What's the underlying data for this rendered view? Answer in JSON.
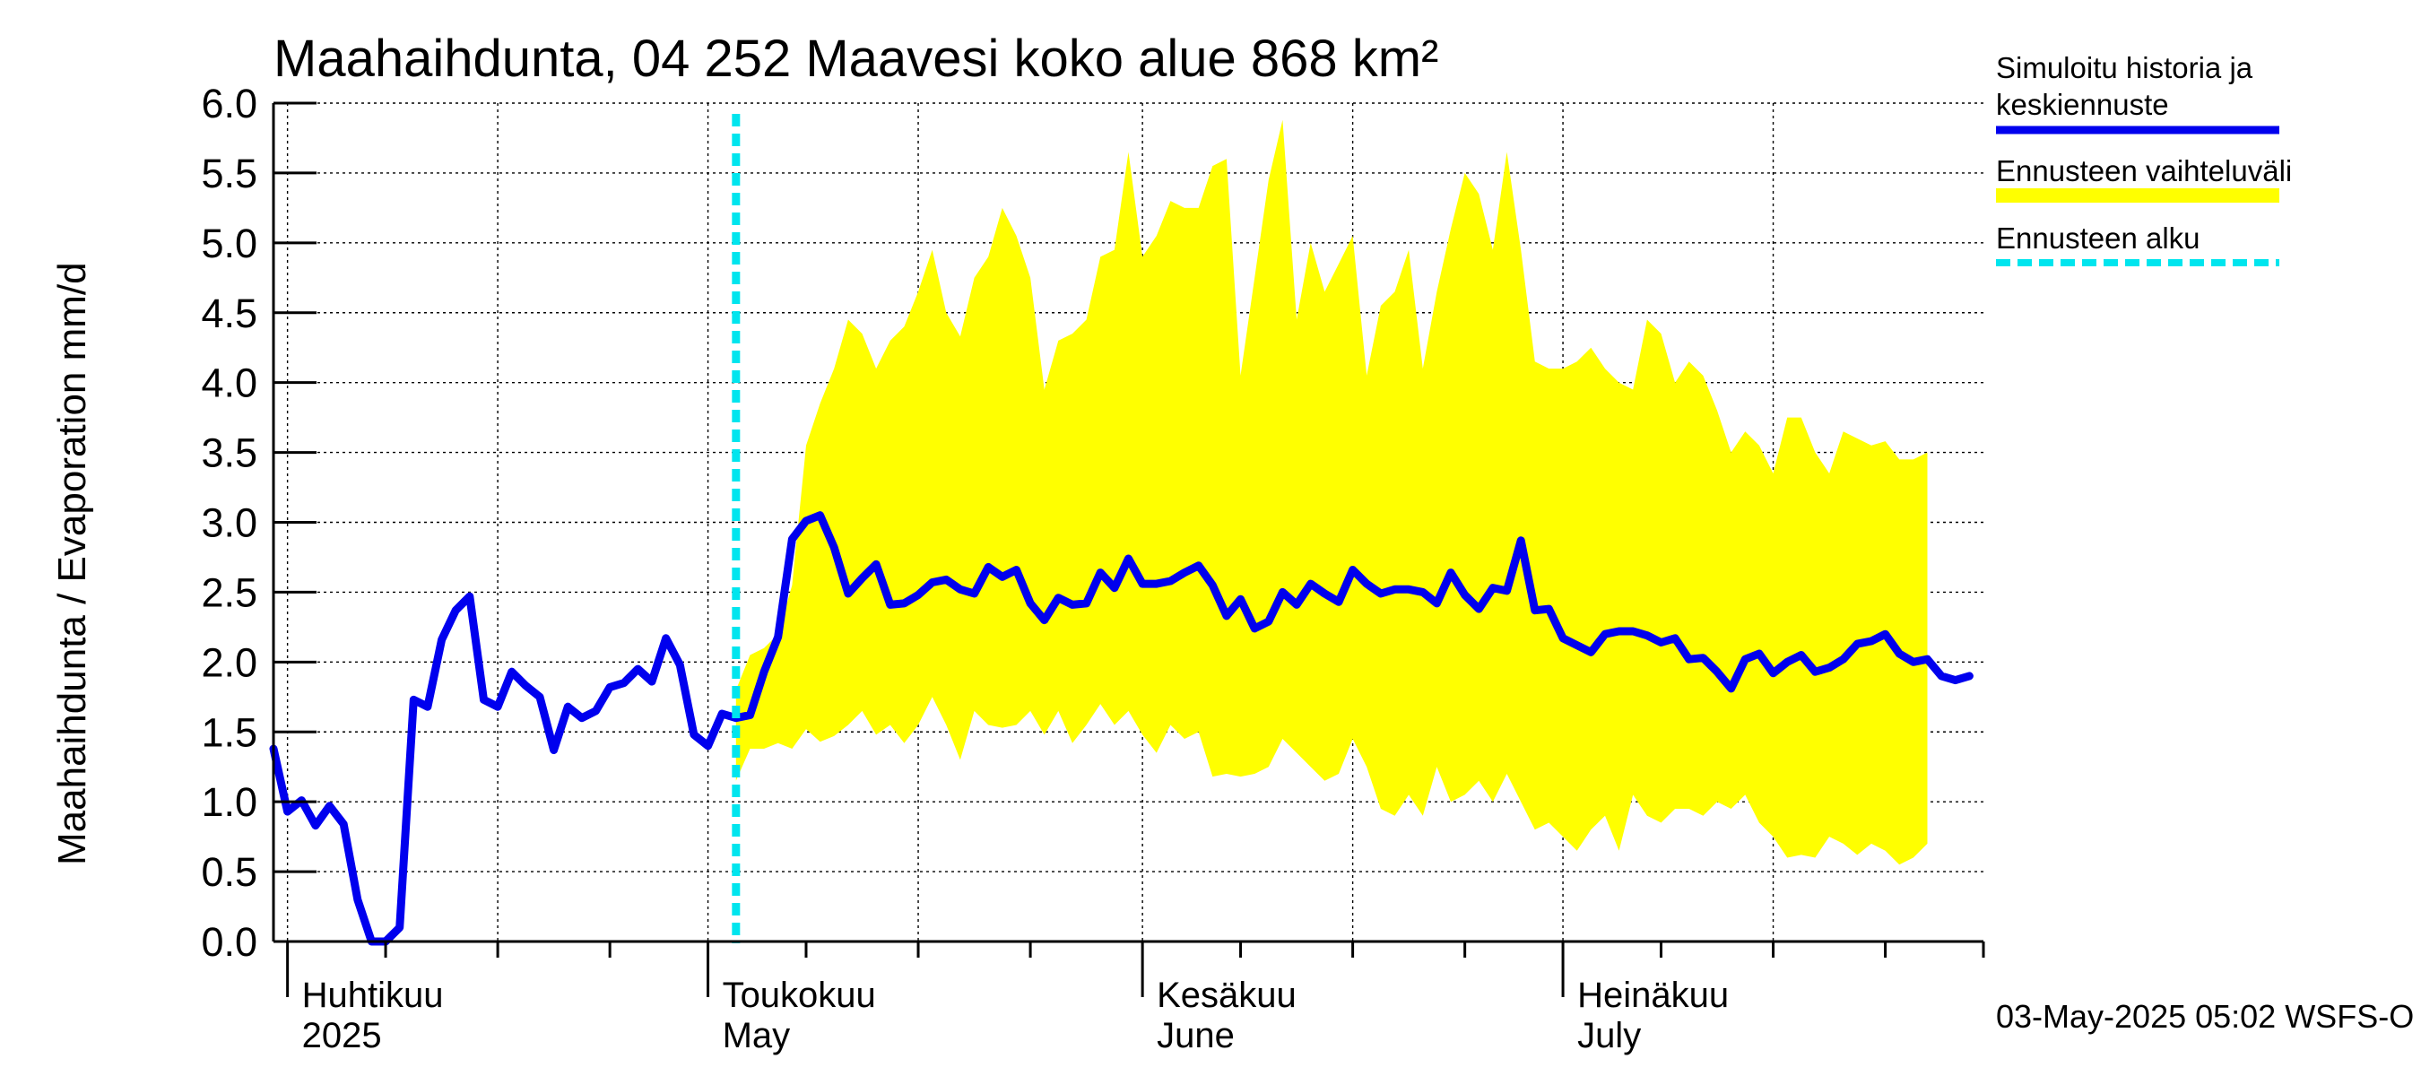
{
  "chart_data": {
    "type": "area",
    "title": "Maahaihdunta, 04 252 Maavesi koko alue 868 km²",
    "ylabel": "Maahaihdunta / Evaporation   mm/d",
    "xlabel": "",
    "ylim": [
      0,
      6
    ],
    "y_ticks": [
      "0.0",
      "0.5",
      "1.0",
      "1.5",
      "2.0",
      "2.5",
      "3.0",
      "3.5",
      "4.0",
      "4.5",
      "5.0",
      "5.5",
      "6.0"
    ],
    "x_range": [
      "2025-03-31",
      "2025-07-31"
    ],
    "month_labels": [
      {
        "date": "2025-04-01",
        "fi": "Huhtikuu",
        "en": "2025"
      },
      {
        "date": "2025-05-01",
        "fi": "Toukokuu",
        "en": "May"
      },
      {
        "date": "2025-06-01",
        "fi": "Kesäkuu",
        "en": "June"
      },
      {
        "date": "2025-07-01",
        "fi": "Heinäkuu",
        "en": "July"
      }
    ],
    "grid": true,
    "forecast_start": "2025-05-03",
    "series": [
      {
        "name": "Simuloitu historia ja keskiennuste",
        "color": "#0000ee",
        "points": [
          [
            "2025-03-31",
            1.38
          ],
          [
            "2025-04-01",
            0.93
          ],
          [
            "2025-04-02",
            1.01
          ],
          [
            "2025-04-03",
            0.83
          ],
          [
            "2025-04-04",
            0.97
          ],
          [
            "2025-04-05",
            0.84
          ],
          [
            "2025-04-06",
            0.3
          ],
          [
            "2025-04-07",
            0.0
          ],
          [
            "2025-04-08",
            0.0
          ],
          [
            "2025-04-09",
            0.1
          ],
          [
            "2025-04-10",
            1.73
          ],
          [
            "2025-04-11",
            1.68
          ],
          [
            "2025-04-12",
            2.16
          ],
          [
            "2025-04-13",
            2.37
          ],
          [
            "2025-04-14",
            2.47
          ],
          [
            "2025-04-15",
            1.73
          ],
          [
            "2025-04-16",
            1.68
          ],
          [
            "2025-04-17",
            1.93
          ],
          [
            "2025-04-18",
            1.83
          ],
          [
            "2025-04-19",
            1.75
          ],
          [
            "2025-04-20",
            1.37
          ],
          [
            "2025-04-21",
            1.68
          ],
          [
            "2025-04-22",
            1.6
          ],
          [
            "2025-04-23",
            1.65
          ],
          [
            "2025-04-24",
            1.82
          ],
          [
            "2025-04-25",
            1.85
          ],
          [
            "2025-04-26",
            1.95
          ],
          [
            "2025-04-27",
            1.86
          ],
          [
            "2025-04-28",
            2.17
          ],
          [
            "2025-04-29",
            1.98
          ],
          [
            "2025-04-30",
            1.48
          ],
          [
            "2025-05-01",
            1.4
          ],
          [
            "2025-05-02",
            1.63
          ],
          [
            "2025-05-03",
            1.6
          ],
          [
            "2025-05-04",
            1.62
          ],
          [
            "2025-05-05",
            1.93
          ],
          [
            "2025-05-06",
            2.18
          ],
          [
            "2025-05-07",
            2.88
          ],
          [
            "2025-05-08",
            3.01
          ],
          [
            "2025-05-09",
            3.05
          ],
          [
            "2025-05-10",
            2.82
          ],
          [
            "2025-05-11",
            2.49
          ],
          [
            "2025-05-12",
            2.6
          ],
          [
            "2025-05-13",
            2.7
          ],
          [
            "2025-05-14",
            2.41
          ],
          [
            "2025-05-15",
            2.42
          ],
          [
            "2025-05-16",
            2.48
          ],
          [
            "2025-05-17",
            2.57
          ],
          [
            "2025-05-18",
            2.59
          ],
          [
            "2025-05-19",
            2.52
          ],
          [
            "2025-05-20",
            2.49
          ],
          [
            "2025-05-21",
            2.68
          ],
          [
            "2025-05-22",
            2.61
          ],
          [
            "2025-05-23",
            2.66
          ],
          [
            "2025-05-24",
            2.42
          ],
          [
            "2025-05-25",
            2.3
          ],
          [
            "2025-05-26",
            2.46
          ],
          [
            "2025-05-27",
            2.41
          ],
          [
            "2025-05-28",
            2.42
          ],
          [
            "2025-05-29",
            2.64
          ],
          [
            "2025-05-30",
            2.53
          ],
          [
            "2025-05-31",
            2.74
          ],
          [
            "2025-06-01",
            2.56
          ],
          [
            "2025-06-02",
            2.56
          ],
          [
            "2025-06-03",
            2.58
          ],
          [
            "2025-06-04",
            2.64
          ],
          [
            "2025-06-05",
            2.69
          ],
          [
            "2025-06-06",
            2.55
          ],
          [
            "2025-06-07",
            2.33
          ],
          [
            "2025-06-08",
            2.45
          ],
          [
            "2025-06-09",
            2.24
          ],
          [
            "2025-06-10",
            2.29
          ],
          [
            "2025-06-11",
            2.5
          ],
          [
            "2025-06-12",
            2.41
          ],
          [
            "2025-06-13",
            2.56
          ],
          [
            "2025-06-14",
            2.49
          ],
          [
            "2025-06-15",
            2.43
          ],
          [
            "2025-06-16",
            2.66
          ],
          [
            "2025-06-17",
            2.56
          ],
          [
            "2025-06-18",
            2.49
          ],
          [
            "2025-06-19",
            2.52
          ],
          [
            "2025-06-20",
            2.52
          ],
          [
            "2025-06-21",
            2.5
          ],
          [
            "2025-06-22",
            2.42
          ],
          [
            "2025-06-23",
            2.64
          ],
          [
            "2025-06-24",
            2.48
          ],
          [
            "2025-06-25",
            2.38
          ],
          [
            "2025-06-26",
            2.53
          ],
          [
            "2025-06-27",
            2.51
          ],
          [
            "2025-06-28",
            2.87
          ],
          [
            "2025-06-29",
            2.37
          ],
          [
            "2025-06-30",
            2.38
          ],
          [
            "2025-07-01",
            2.17
          ],
          [
            "2025-07-02",
            2.12
          ],
          [
            "2025-07-03",
            2.07
          ],
          [
            "2025-07-04",
            2.2
          ],
          [
            "2025-07-05",
            2.22
          ],
          [
            "2025-07-06",
            2.22
          ],
          [
            "2025-07-07",
            2.19
          ],
          [
            "2025-07-08",
            2.14
          ],
          [
            "2025-07-09",
            2.17
          ],
          [
            "2025-07-10",
            2.02
          ],
          [
            "2025-07-11",
            2.03
          ],
          [
            "2025-07-12",
            1.93
          ],
          [
            "2025-07-13",
            1.81
          ],
          [
            "2025-07-14",
            2.02
          ],
          [
            "2025-07-15",
            2.06
          ],
          [
            "2025-07-16",
            1.92
          ],
          [
            "2025-07-17",
            2.0
          ],
          [
            "2025-07-18",
            2.05
          ],
          [
            "2025-07-19",
            1.93
          ],
          [
            "2025-07-20",
            1.96
          ],
          [
            "2025-07-21",
            2.02
          ],
          [
            "2025-07-22",
            2.13
          ],
          [
            "2025-07-23",
            2.15
          ],
          [
            "2025-07-24",
            2.2
          ],
          [
            "2025-07-25",
            2.06
          ],
          [
            "2025-07-26",
            2.0
          ],
          [
            "2025-07-27",
            2.02
          ],
          [
            "2025-07-28",
            1.9
          ],
          [
            "2025-07-29",
            1.87
          ],
          [
            "2025-07-30",
            1.9
          ]
        ]
      },
      {
        "name": "Ennusteen vaihteluväli",
        "color": "#ffff00",
        "band": [
          [
            "2025-05-03",
            1.15,
            1.8
          ],
          [
            "2025-05-04",
            1.38,
            2.05
          ],
          [
            "2025-05-05",
            1.38,
            2.1
          ],
          [
            "2025-05-06",
            1.42,
            2.2
          ],
          [
            "2025-05-07",
            1.38,
            2.55
          ],
          [
            "2025-05-08",
            1.52,
            3.55
          ],
          [
            "2025-05-09",
            1.43,
            3.85
          ],
          [
            "2025-05-10",
            1.47,
            4.1
          ],
          [
            "2025-05-11",
            1.55,
            4.45
          ],
          [
            "2025-05-12",
            1.65,
            4.35
          ],
          [
            "2025-05-13",
            1.48,
            4.1
          ],
          [
            "2025-05-14",
            1.55,
            4.3
          ],
          [
            "2025-05-15",
            1.42,
            4.4
          ],
          [
            "2025-05-16",
            1.55,
            4.65
          ],
          [
            "2025-05-17",
            1.75,
            4.95
          ],
          [
            "2025-05-18",
            1.55,
            4.5
          ],
          [
            "2025-05-19",
            1.3,
            4.33
          ],
          [
            "2025-05-20",
            1.65,
            4.75
          ],
          [
            "2025-05-21",
            1.55,
            4.9
          ],
          [
            "2025-05-22",
            1.53,
            5.25
          ],
          [
            "2025-05-23",
            1.55,
            5.05
          ],
          [
            "2025-05-24",
            1.65,
            4.75
          ],
          [
            "2025-05-25",
            1.48,
            3.95
          ],
          [
            "2025-05-26",
            1.65,
            4.3
          ],
          [
            "2025-05-27",
            1.42,
            4.35
          ],
          [
            "2025-05-28",
            1.55,
            4.45
          ],
          [
            "2025-05-29",
            1.7,
            4.9
          ],
          [
            "2025-05-30",
            1.55,
            4.95
          ],
          [
            "2025-05-31",
            1.65,
            5.65
          ],
          [
            "2025-06-01",
            1.48,
            4.9
          ],
          [
            "2025-06-02",
            1.35,
            5.05
          ],
          [
            "2025-06-03",
            1.55,
            5.3
          ],
          [
            "2025-06-04",
            1.45,
            5.25
          ],
          [
            "2025-06-05",
            1.5,
            5.25
          ],
          [
            "2025-06-06",
            1.18,
            5.55
          ],
          [
            "2025-06-07",
            1.2,
            5.6
          ],
          [
            "2025-06-08",
            1.18,
            4.05
          ],
          [
            "2025-06-09",
            1.2,
            4.75
          ],
          [
            "2025-06-10",
            1.25,
            5.45
          ],
          [
            "2025-06-11",
            1.45,
            5.88
          ],
          [
            "2025-06-12",
            1.35,
            4.45
          ],
          [
            "2025-06-13",
            1.25,
            5.0
          ],
          [
            "2025-06-14",
            1.15,
            4.65
          ],
          [
            "2025-06-15",
            1.2,
            4.85
          ],
          [
            "2025-06-16",
            1.45,
            5.05
          ],
          [
            "2025-06-17",
            1.25,
            4.05
          ],
          [
            "2025-06-18",
            0.95,
            4.55
          ],
          [
            "2025-06-19",
            0.9,
            4.65
          ],
          [
            "2025-06-20",
            1.05,
            4.95
          ],
          [
            "2025-06-21",
            0.9,
            4.1
          ],
          [
            "2025-06-22",
            1.25,
            4.65
          ],
          [
            "2025-06-23",
            1.0,
            5.1
          ],
          [
            "2025-06-24",
            1.05,
            5.5
          ],
          [
            "2025-06-25",
            1.15,
            5.35
          ],
          [
            "2025-06-26",
            1.0,
            4.95
          ],
          [
            "2025-06-27",
            1.2,
            5.65
          ],
          [
            "2025-06-28",
            1.0,
            4.95
          ],
          [
            "2025-06-29",
            0.8,
            4.15
          ],
          [
            "2025-06-30",
            0.85,
            4.1
          ],
          [
            "2025-07-01",
            0.75,
            4.1
          ],
          [
            "2025-07-02",
            0.65,
            4.15
          ],
          [
            "2025-07-03",
            0.8,
            4.25
          ],
          [
            "2025-07-04",
            0.9,
            4.1
          ],
          [
            "2025-07-05",
            0.65,
            4.0
          ],
          [
            "2025-07-06",
            1.05,
            3.95
          ],
          [
            "2025-07-07",
            0.9,
            4.45
          ],
          [
            "2025-07-08",
            0.85,
            4.35
          ],
          [
            "2025-07-09",
            0.95,
            4.0
          ],
          [
            "2025-07-10",
            0.95,
            4.15
          ],
          [
            "2025-07-11",
            0.9,
            4.05
          ],
          [
            "2025-07-12",
            1.0,
            3.8
          ],
          [
            "2025-07-13",
            0.95,
            3.5
          ],
          [
            "2025-07-14",
            1.05,
            3.65
          ],
          [
            "2025-07-15",
            0.85,
            3.55
          ],
          [
            "2025-07-16",
            0.75,
            3.35
          ],
          [
            "2025-07-17",
            0.6,
            3.75
          ],
          [
            "2025-07-18",
            0.62,
            3.75
          ],
          [
            "2025-07-19",
            0.6,
            3.5
          ],
          [
            "2025-07-20",
            0.75,
            3.35
          ],
          [
            "2025-07-21",
            0.7,
            3.65
          ],
          [
            "2025-07-22",
            0.62,
            3.6
          ],
          [
            "2025-07-23",
            0.7,
            3.55
          ],
          [
            "2025-07-24",
            0.65,
            3.58
          ],
          [
            "2025-07-25",
            0.55,
            3.45
          ],
          [
            "2025-07-26",
            0.6,
            3.45
          ],
          [
            "2025-07-27",
            0.7,
            3.5
          ]
        ]
      }
    ],
    "legend": [
      {
        "lines": [
          "Simuloitu historia ja",
          "keskiennuste"
        ],
        "color": "#0000ee",
        "style": "solid"
      },
      {
        "lines": [
          "Ennusteen vaihteluväli"
        ],
        "color": "#ffff00",
        "style": "solid"
      },
      {
        "lines": [
          "Ennusteen alku"
        ],
        "color": "#00e5ee",
        "style": "dashed"
      }
    ],
    "legend_position": "right"
  },
  "footer": "03-May-2025 05:02 WSFS-O"
}
